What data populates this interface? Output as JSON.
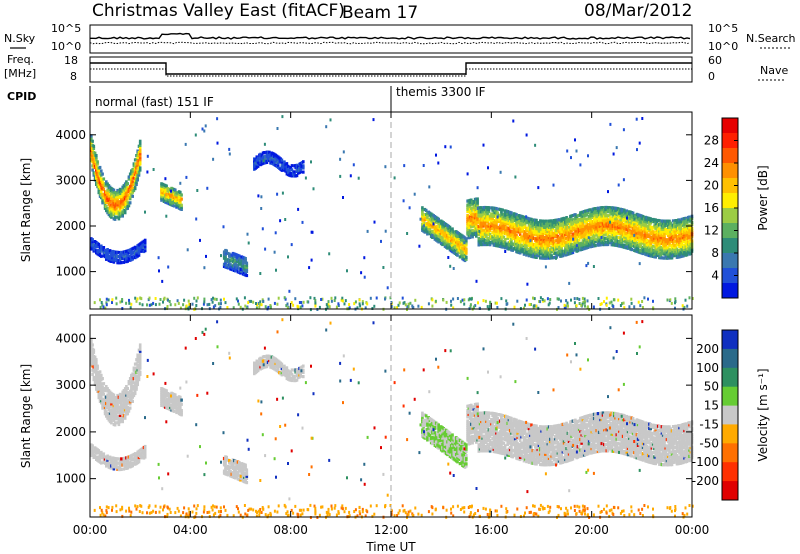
{
  "header": {
    "title": "Christmas Valley East (fitACF)",
    "beam": "Beam 17",
    "date": "08/Mar/2012"
  },
  "top_panels": {
    "nsky_label": "N.Sky",
    "nsearch_label": "N.Search",
    "noise_ticks": [
      "10^5",
      "10^0"
    ],
    "freq_label_1": "Freq.",
    "freq_label_2": "[MHz]",
    "freq_ticks": [
      "18",
      "8"
    ],
    "nave_label": "Nave",
    "nave_ticks": [
      "60",
      "0"
    ],
    "cpid_label": "CPID",
    "cpid_1": "normal (fast) 151 IF",
    "cpid_2": "themis 3300 IF"
  },
  "chart_data": [
    {
      "type": "heatmap",
      "title": "",
      "xlabel": "",
      "ylabel": "Slant Range [km]",
      "x_ticks": [
        "00:00",
        "04:00",
        "08:00",
        "12:00",
        "16:00",
        "20:00",
        "00:00"
      ],
      "y_ticks": [
        1000,
        2000,
        3000,
        4000
      ],
      "xlim_hours": [
        0,
        24
      ],
      "ylim_km": [
        180,
        4500
      ],
      "colorbar": {
        "label": "Power [dB]",
        "ticks": [
          4,
          8,
          12,
          16,
          20,
          24,
          28
        ],
        "range": [
          0,
          32
        ],
        "colors": [
          "#0018e0",
          "#2050d8",
          "#3a78b0",
          "#2e8c78",
          "#5cb060",
          "#9ccc44",
          "#ffee00",
          "#ffc000",
          "#ff9000",
          "#ff5800",
          "#ff2000",
          "#e60000"
        ]
      },
      "echo_regions": [
        {
          "t_start": 0.0,
          "t_end": 2.0,
          "range_center_km": 2700,
          "power_db": 26
        },
        {
          "t_start": 0.0,
          "t_end": 2.2,
          "range_center_km": 1650,
          "power_db": 5
        },
        {
          "t_start": 2.8,
          "t_end": 3.6,
          "range_center_km": 2600,
          "power_db": 22
        },
        {
          "t_start": 5.3,
          "t_end": 6.2,
          "range_center_km": 1150,
          "power_db": 10
        },
        {
          "t_start": 6.5,
          "t_end": 8.5,
          "range_center_km": 3400,
          "power_db": 5
        },
        {
          "t_start": 13.2,
          "t_end": 15.0,
          "range_center_km": 1700,
          "power_db": 22
        },
        {
          "t_start": 15.0,
          "t_end": 24.0,
          "range_center_km": 1900,
          "power_db": 24
        }
      ]
    },
    {
      "type": "heatmap",
      "title": "",
      "xlabel": "Time UT",
      "ylabel": "Slant Range [km]",
      "x_ticks": [
        "00:00",
        "04:00",
        "08:00",
        "12:00",
        "16:00",
        "20:00",
        "00:00"
      ],
      "y_ticks": [
        1000,
        2000,
        3000,
        4000
      ],
      "xlim_hours": [
        0,
        24
      ],
      "ylim_km": [
        180,
        4500
      ],
      "colorbar": {
        "label": "Velocity [m s⁻¹]",
        "ticks": [
          "200",
          "100",
          "50",
          "15",
          "-15",
          "-50",
          "-100",
          "-200"
        ],
        "colors": [
          "#1030c0",
          "#2a6a8a",
          "#2e9060",
          "#66cc33",
          "#c8c8c8",
          "#ffaa00",
          "#ff7000",
          "#ff3000",
          "#e00000"
        ]
      }
    }
  ]
}
